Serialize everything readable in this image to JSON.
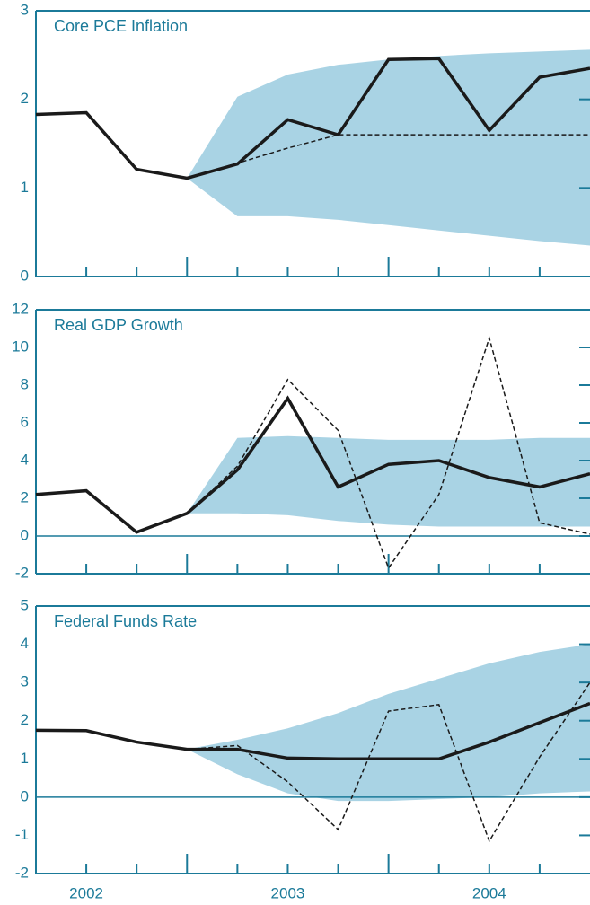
{
  "chart_data": [
    {
      "type": "line",
      "title": "Core PCE Inflation",
      "ylim": [
        0,
        3
      ],
      "yticks": [
        0,
        1,
        2,
        3
      ],
      "band": {
        "color": "#a9d3e4",
        "lower": [
          null,
          null,
          null,
          1.11,
          0.68,
          0.68,
          0.64,
          0.58,
          0.52,
          0.46,
          0.4,
          0.35
        ],
        "upper": [
          null,
          null,
          null,
          1.11,
          2.03,
          2.28,
          2.39,
          2.45,
          2.49,
          2.52,
          2.54,
          2.56
        ]
      },
      "series": [
        {
          "color": "#1a1a1a",
          "style": "solid",
          "values": [
            1.83,
            1.85,
            1.21,
            1.11,
            1.27,
            1.77,
            1.6,
            2.45,
            2.46,
            1.65,
            2.25,
            2.35
          ]
        },
        {
          "color": "#1a1a1a",
          "style": "dashed",
          "values": [
            null,
            null,
            null,
            1.11,
            1.28,
            1.45,
            1.6,
            1.6,
            1.6,
            1.6,
            1.6,
            1.6
          ]
        }
      ]
    },
    {
      "type": "line",
      "title": "Real GDP Growth",
      "ylim": [
        -2,
        12
      ],
      "yticks": [
        -2,
        0,
        2,
        4,
        6,
        8,
        10,
        12
      ],
      "band": {
        "color": "#a9d3e4",
        "lower": [
          null,
          null,
          null,
          1.2,
          1.2,
          1.1,
          0.8,
          0.6,
          0.5,
          0.5,
          0.5,
          0.5
        ],
        "upper": [
          null,
          null,
          null,
          1.2,
          5.2,
          5.3,
          5.2,
          5.1,
          5.1,
          5.1,
          5.2,
          5.2
        ]
      },
      "series": [
        {
          "color": "#1a1a1a",
          "style": "solid",
          "values": [
            2.2,
            2.4,
            0.2,
            1.2,
            3.5,
            7.3,
            2.6,
            3.8,
            4.0,
            3.1,
            2.6,
            3.3
          ]
        },
        {
          "color": "#1a1a1a",
          "style": "dashed",
          "values": [
            null,
            null,
            null,
            1.2,
            3.7,
            8.3,
            5.6,
            -1.7,
            2.2,
            10.5,
            0.7,
            0.1
          ]
        }
      ]
    },
    {
      "type": "line",
      "title": "Federal Funds Rate",
      "ylim": [
        -2,
        5
      ],
      "yticks": [
        -2,
        -1,
        0,
        1,
        2,
        3,
        4,
        5
      ],
      "categories": [
        null,
        "2002",
        null,
        null,
        null,
        "2003",
        null,
        null,
        null,
        "2004",
        null,
        null
      ],
      "band": {
        "color": "#a9d3e4",
        "lower": [
          null,
          null,
          null,
          1.25,
          0.6,
          0.1,
          -0.1,
          -0.1,
          -0.05,
          0.0,
          0.1,
          0.15
        ],
        "upper": [
          null,
          null,
          null,
          1.25,
          1.5,
          1.8,
          2.2,
          2.7,
          3.1,
          3.5,
          3.8,
          4.0
        ]
      },
      "series": [
        {
          "color": "#1a1a1a",
          "style": "solid",
          "values": [
            1.75,
            1.74,
            1.44,
            1.25,
            1.25,
            1.02,
            1.0,
            1.0,
            1.0,
            1.44,
            1.95,
            2.45
          ]
        },
        {
          "color": "#1a1a1a",
          "style": "dashed",
          "values": [
            null,
            null,
            null,
            1.25,
            1.35,
            0.4,
            -0.85,
            2.25,
            2.42,
            -1.15,
            1.05,
            3.0
          ]
        }
      ]
    }
  ]
}
